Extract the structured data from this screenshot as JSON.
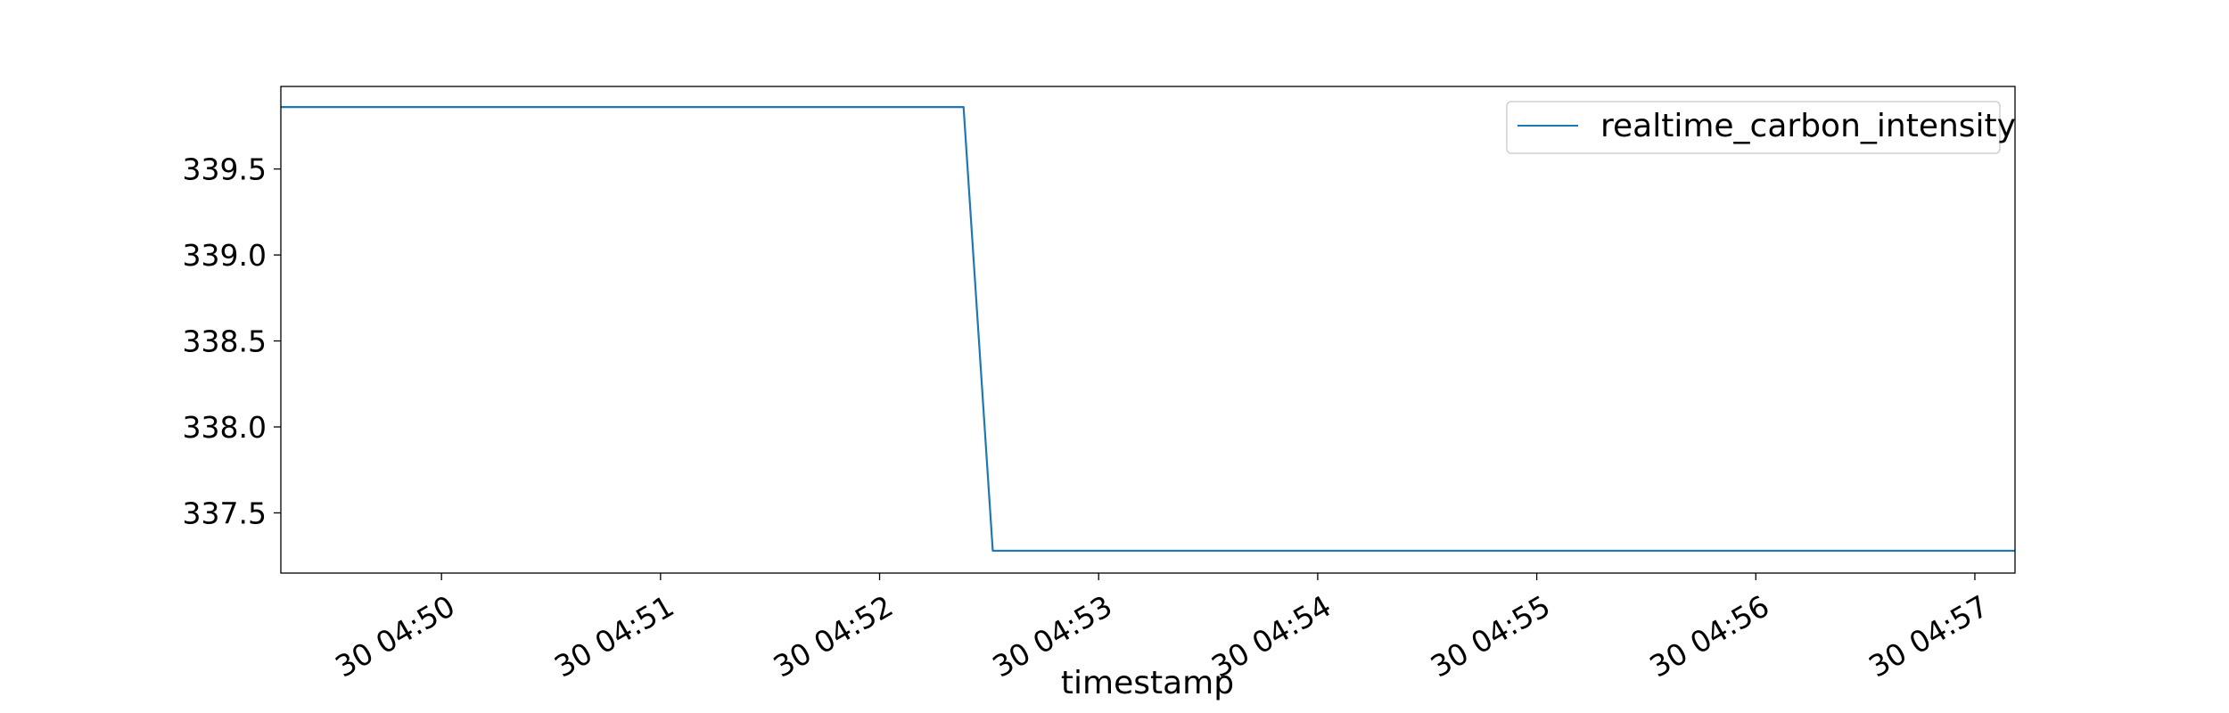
{
  "chart_data": {
    "type": "line",
    "title": "",
    "xlabel": "timestamp",
    "ylabel": "",
    "x_ticks": [
      "30 04:50",
      "30 04:51",
      "30 04:52",
      "30 04:53",
      "30 04:54",
      "30 04:55",
      "30 04:56",
      "30 04:57"
    ],
    "y_ticks": [
      "337.5",
      "338.0",
      "338.5",
      "339.0",
      "339.5"
    ],
    "xlim": [
      "30 04:49:16",
      "30 04:57:11"
    ],
    "ylim": [
      337.15,
      339.98
    ],
    "grid": false,
    "legend_position": "top-right",
    "series": [
      {
        "name": "realtime_carbon_intensity",
        "color": "#1f77b4",
        "x": [
          "30 04:49:16",
          "30 04:52:23",
          "30 04:52:31",
          "30 04:57:11"
        ],
        "y": [
          339.86,
          339.86,
          337.28,
          337.28
        ]
      }
    ]
  }
}
